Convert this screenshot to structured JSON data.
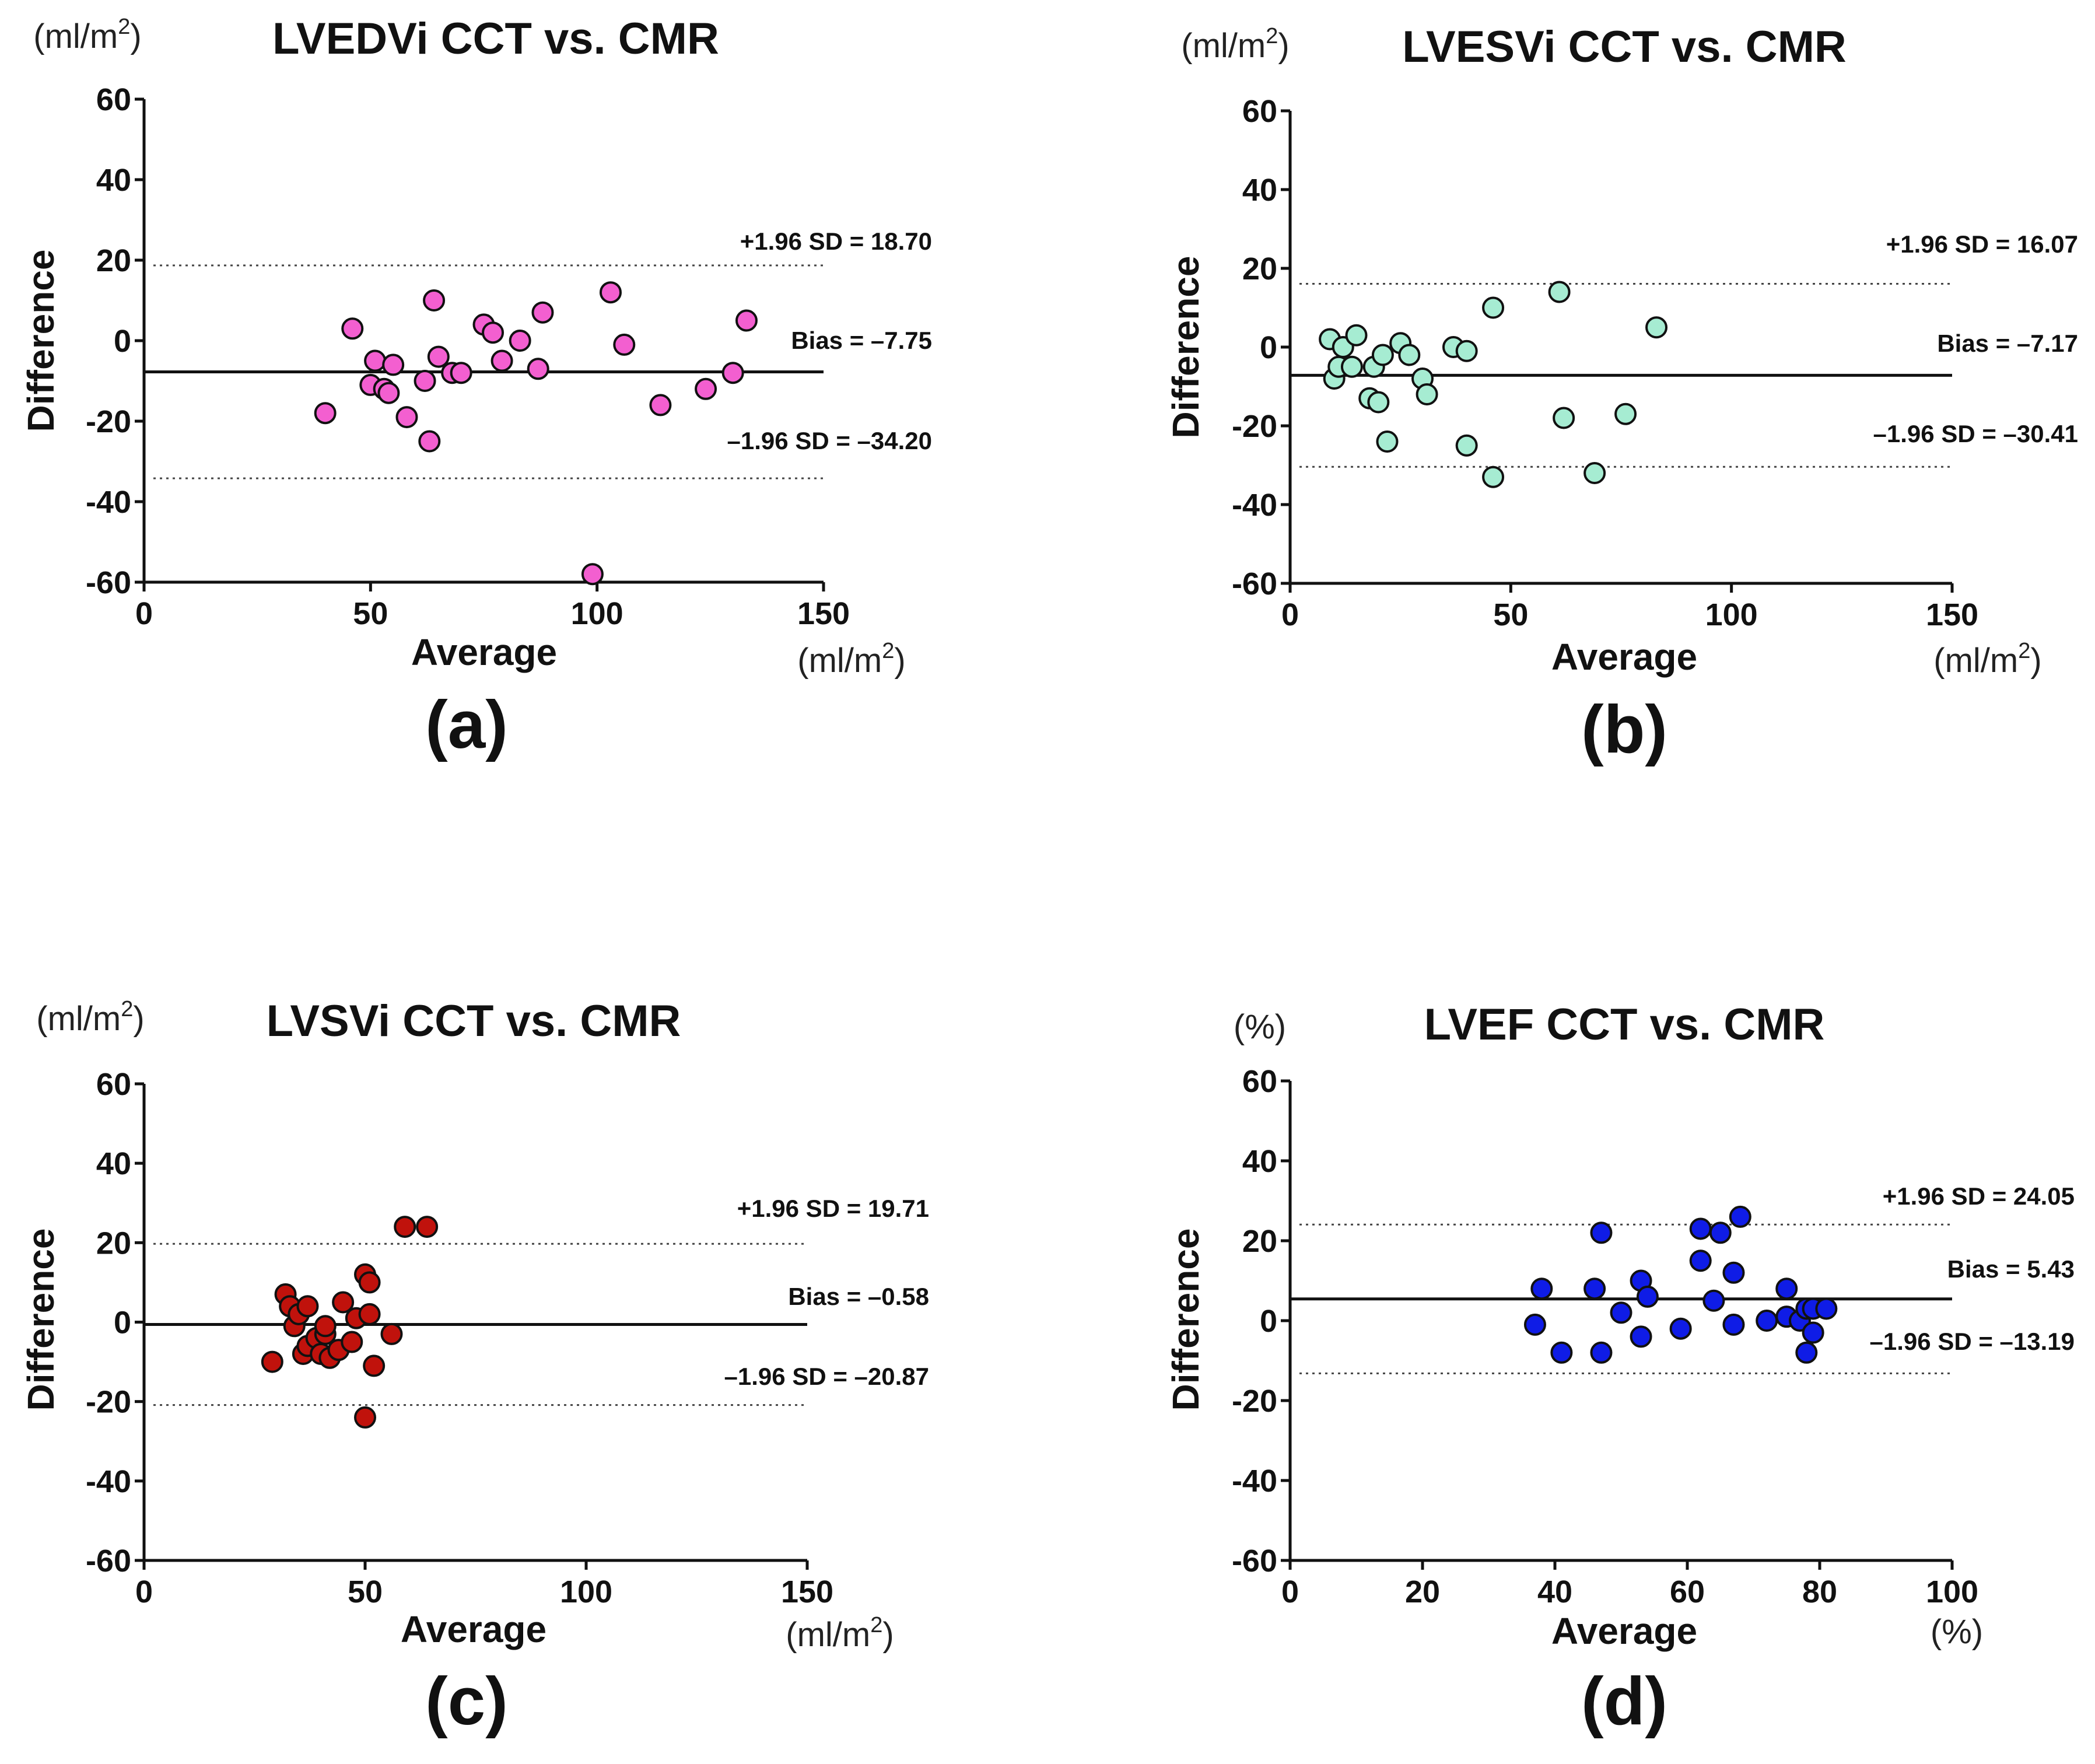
{
  "chart_data": [
    {
      "type": "scatter",
      "panel_label": "(a)",
      "title": "LVEDVi CCT vs. CMR",
      "y_unit": {
        "base": "(ml/m",
        "sup": "2",
        "tail": ")"
      },
      "x_unit": {
        "base": "(ml/m",
        "sup": "2",
        "tail": ")"
      },
      "xlabel": "Average",
      "ylabel": "Difference",
      "xlim": [
        0,
        150
      ],
      "ylim": [
        -60,
        60
      ],
      "xticks": [
        0,
        50,
        100,
        150
      ],
      "yticks": [
        -60,
        -40,
        -20,
        0,
        20,
        40,
        60
      ],
      "marker_color": "#f35fd0",
      "bias": -7.75,
      "upper_loa": 18.7,
      "lower_loa": -34.2,
      "bias_label": "Bias = –7.75",
      "upper_label": "+1.96 SD = 18.70",
      "lower_label": "–1.96 SD = –34.20",
      "points": [
        [
          40,
          -18
        ],
        [
          46,
          3
        ],
        [
          50,
          -11
        ],
        [
          51,
          -5
        ],
        [
          53,
          -12
        ],
        [
          54,
          -13
        ],
        [
          55,
          -6
        ],
        [
          58,
          -19
        ],
        [
          62,
          -10
        ],
        [
          63,
          -25
        ],
        [
          64,
          10
        ],
        [
          65,
          -4
        ],
        [
          68,
          -8
        ],
        [
          70,
          -8
        ],
        [
          75,
          4
        ],
        [
          77,
          2
        ],
        [
          79,
          -5
        ],
        [
          83,
          0
        ],
        [
          87,
          -7
        ],
        [
          88,
          7
        ],
        [
          103,
          12
        ],
        [
          106,
          -1
        ],
        [
          114,
          -16
        ],
        [
          124,
          -12
        ],
        [
          130,
          -8
        ],
        [
          133,
          5
        ],
        [
          99,
          -58
        ]
      ]
    },
    {
      "type": "scatter",
      "panel_label": "(b)",
      "title": "LVESVi CCT vs. CMR",
      "y_unit": {
        "base": "(ml/m",
        "sup": "2",
        "tail": ")"
      },
      "x_unit": {
        "base": "(ml/m",
        "sup": "2",
        "tail": ")"
      },
      "xlabel": "Average",
      "ylabel": "Difference",
      "xlim": [
        0,
        150
      ],
      "ylim": [
        -60,
        60
      ],
      "xticks": [
        0,
        50,
        100,
        150
      ],
      "yticks": [
        -60,
        -40,
        -20,
        0,
        20,
        40,
        60
      ],
      "marker_color": "#a6ecd2",
      "bias": -7.17,
      "upper_loa": 16.07,
      "lower_loa": -30.41,
      "bias_label": "Bias = –7.17",
      "upper_label": "+1.96 SD = 16.07",
      "lower_label": "–1.96 SD = –30.41",
      "points": [
        [
          9,
          2
        ],
        [
          10,
          -8
        ],
        [
          11,
          -5
        ],
        [
          12,
          0
        ],
        [
          14,
          -5
        ],
        [
          15,
          3
        ],
        [
          18,
          -13
        ],
        [
          19,
          -5
        ],
        [
          20,
          -14
        ],
        [
          21,
          -2
        ],
        [
          22,
          -24
        ],
        [
          25,
          1
        ],
        [
          27,
          -2
        ],
        [
          30,
          -8
        ],
        [
          31,
          -12
        ],
        [
          37,
          0
        ],
        [
          40,
          -1
        ],
        [
          40,
          -25
        ],
        [
          46,
          10
        ],
        [
          46,
          -33
        ],
        [
          61,
          14
        ],
        [
          62,
          -18
        ],
        [
          69,
          -32
        ],
        [
          76,
          -17
        ],
        [
          83,
          5
        ]
      ]
    },
    {
      "type": "scatter",
      "panel_label": "(c)",
      "title": "LVSVi CCT vs. CMR",
      "y_unit": {
        "base": "(ml/m",
        "sup": "2",
        "tail": ")"
      },
      "x_unit": {
        "base": "(ml/m",
        "sup": "2",
        "tail": ")"
      },
      "xlabel": "Average",
      "ylabel": "Difference",
      "xlim": [
        0,
        150
      ],
      "ylim": [
        -60,
        60
      ],
      "xticks": [
        0,
        50,
        100,
        150
      ],
      "yticks": [
        -60,
        -40,
        -20,
        0,
        20,
        40,
        60
      ],
      "marker_color": "#c0120c",
      "bias": -0.58,
      "upper_loa": 19.71,
      "lower_loa": -20.87,
      "bias_label": "Bias = –0.58",
      "upper_label": "+1.96 SD = 19.71",
      "lower_label": "–1.96 SD = –20.87",
      "points": [
        [
          29,
          -10
        ],
        [
          32,
          7
        ],
        [
          33,
          4
        ],
        [
          34,
          -1
        ],
        [
          35,
          2
        ],
        [
          36,
          -8
        ],
        [
          37,
          -6
        ],
        [
          37,
          4
        ],
        [
          39,
          -4
        ],
        [
          40,
          -8
        ],
        [
          41,
          -3
        ],
        [
          41,
          -1
        ],
        [
          42,
          -9
        ],
        [
          44,
          -7
        ],
        [
          45,
          5
        ],
        [
          47,
          -5
        ],
        [
          48,
          1
        ],
        [
          50,
          12
        ],
        [
          50,
          -24
        ],
        [
          51,
          10
        ],
        [
          51,
          2
        ],
        [
          52,
          -11
        ],
        [
          56,
          -3
        ],
        [
          59,
          24
        ],
        [
          64,
          24
        ]
      ]
    },
    {
      "type": "scatter",
      "panel_label": "(d)",
      "title": "LVEF CCT vs. CMR",
      "y_unit": {
        "base": "(%)",
        "sup": "",
        "tail": ""
      },
      "x_unit": {
        "base": "(%)",
        "sup": "",
        "tail": ""
      },
      "xlabel": "Average",
      "ylabel": "Difference",
      "xlim": [
        0,
        100
      ],
      "ylim": [
        -60,
        60
      ],
      "xticks": [
        0,
        20,
        40,
        60,
        80,
        100
      ],
      "yticks": [
        -60,
        -40,
        -20,
        0,
        20,
        40,
        60
      ],
      "marker_color": "#0f1ce6",
      "bias": 5.43,
      "upper_loa": 24.05,
      "lower_loa": -13.19,
      "bias_label": "Bias = 5.43",
      "upper_label": "+1.96 SD = 24.05",
      "lower_label": "–1.96 SD = –13.19",
      "points": [
        [
          37,
          -1
        ],
        [
          38,
          8
        ],
        [
          41,
          -8
        ],
        [
          46,
          8
        ],
        [
          47,
          -8
        ],
        [
          47,
          22
        ],
        [
          50,
          2
        ],
        [
          53,
          10
        ],
        [
          53,
          -4
        ],
        [
          54,
          6
        ],
        [
          59,
          -2
        ],
        [
          62,
          23
        ],
        [
          62,
          15
        ],
        [
          64,
          5
        ],
        [
          65,
          22
        ],
        [
          67,
          12
        ],
        [
          67,
          -1
        ],
        [
          68,
          26
        ],
        [
          72,
          0
        ],
        [
          75,
          1
        ],
        [
          75,
          8
        ],
        [
          77,
          0
        ],
        [
          78,
          3
        ],
        [
          78,
          -8
        ],
        [
          79,
          3
        ],
        [
          79,
          -3
        ],
        [
          81,
          3
        ]
      ]
    }
  ]
}
